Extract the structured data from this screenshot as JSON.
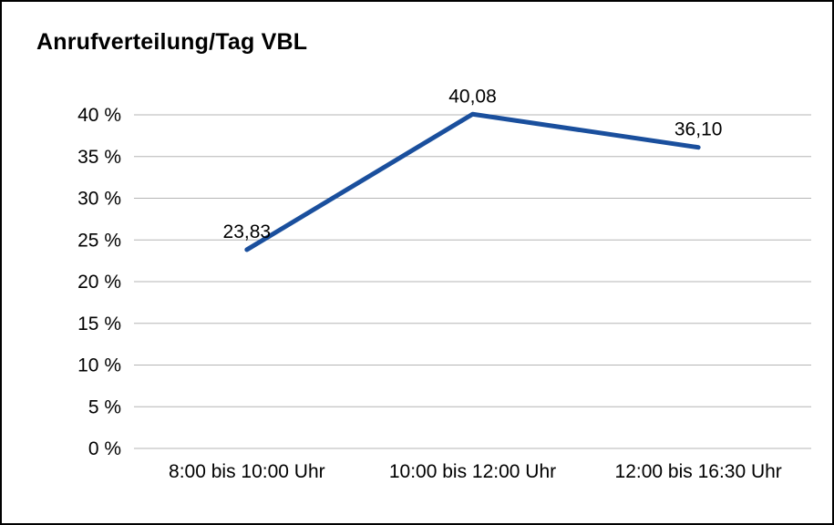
{
  "title": "Anrufverteilung/Tag VBL",
  "colors": {
    "line": "#1a4f9d",
    "grid": "#b5b5b5",
    "text": "#000000",
    "background": "#ffffff",
    "border": "#000000"
  },
  "chart_data": {
    "type": "line",
    "title": "Anrufverteilung/Tag VBL",
    "categories": [
      "8:00 bis 10:00 Uhr",
      "10:00 bis 12:00 Uhr",
      "12:00 bis 16:30 Uhr"
    ],
    "values": [
      23.83,
      40.08,
      36.1
    ],
    "value_labels": [
      "23,83",
      "40,08",
      "36,10"
    ],
    "yticks": [
      {
        "value": 0,
        "label": "0 %"
      },
      {
        "value": 5,
        "label": "5 %"
      },
      {
        "value": 10,
        "label": "10 %"
      },
      {
        "value": 15,
        "label": "15 %"
      },
      {
        "value": 20,
        "label": "20 %"
      },
      {
        "value": 25,
        "label": "25 %"
      },
      {
        "value": 30,
        "label": "30 %"
      },
      {
        "value": 35,
        "label": "35 %"
      },
      {
        "value": 40,
        "label": "40 %"
      }
    ],
    "ylim": [
      0,
      40
    ],
    "ytick_step": 5,
    "xlabel": "",
    "ylabel": "",
    "grid": true,
    "legend": "none"
  }
}
